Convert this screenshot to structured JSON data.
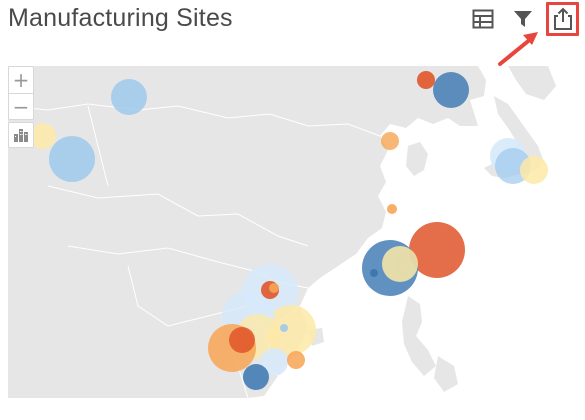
{
  "header": {
    "title": "Manufacturing Sites"
  },
  "toolbar": {
    "table_icon": "table-icon",
    "filter_icon": "filter-icon",
    "export_icon": "share-export-icon",
    "highlight_color": "#e8463c"
  },
  "map": {
    "zoom_in_label": "+",
    "zoom_out_label": "−",
    "layers_icon": "city-buildings-icon",
    "land_color": "#e6e6e6",
    "border_color": "#ffffff",
    "palette": {
      "dark_blue": "#3a76b0",
      "light_blue": "#9ec9ec",
      "pale_blue": "#d6e9fa",
      "pale_yellow": "#fde9a7",
      "orange": "#f7a553",
      "red_orange": "#e0552a"
    }
  }
}
